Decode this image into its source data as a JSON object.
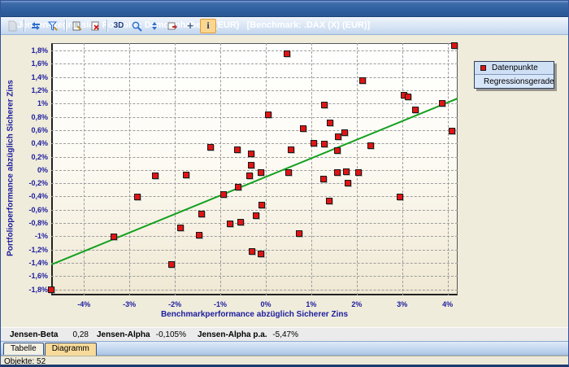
{
  "window": {
    "title": "Jensen-Regression Portfolio: Demo-Inhaber 1 (EUR)   [Benchmark: .DAX (X) (EUR)]"
  },
  "toolbar": {
    "icons": [
      "selection",
      "refresh",
      "edit-filter",
      "edit-report",
      "delete",
      "3d-view",
      "zoom",
      "sort",
      "export",
      "add",
      "info"
    ],
    "label_3d": "3D",
    "label_add": "+",
    "label_info": "i"
  },
  "chart_data": {
    "type": "scatter",
    "xlabel": "Benchmarkperformance abzüglich Sicherer Zins",
    "ylabel": "Portfolioperformance abzüglich Sicherer Zins",
    "xlim": [
      -4.72,
      4.22
    ],
    "ylim": [
      -1.89,
      1.91
    ],
    "grid": "dashed",
    "legend_position": "top-right-outside",
    "x_ticks": {
      "values": [
        -4,
        -3,
        -2,
        -1,
        0,
        1,
        2,
        3,
        4
      ],
      "labels": [
        "-4%",
        "-3%",
        "-2%",
        "-1%",
        "0%",
        "1%",
        "2%",
        "3%",
        "4%"
      ]
    },
    "y_ticks": {
      "values": [
        1.8,
        1.6,
        1.4,
        1.2,
        1.0,
        0.8,
        0.6,
        0.4,
        0.2,
        0,
        -0.2,
        -0.4,
        -0.6,
        -0.8,
        -1.0,
        -1.2,
        -1.4,
        -1.6,
        -1.8
      ],
      "labels": [
        "1,8%",
        "1,6%",
        "1,4%",
        "1,2%",
        "1%",
        "0,8%",
        "0,6%",
        "0,4%",
        "0,2%",
        "0%",
        "-0,2%",
        "-0,4%",
        "-0,6%",
        "-0,8%",
        "-1%",
        "-1,2%",
        "-1,4%",
        "-1,6%",
        "-1,8%"
      ]
    },
    "legend": [
      {
        "label": "Datenpunkte",
        "marker": "square",
        "color": "#e01414"
      },
      {
        "label": "Regressionsgerade",
        "marker": "line",
        "color": "#12a01e"
      }
    ],
    "series": [
      {
        "name": "Datenpunkte",
        "marker_color": "#e01414",
        "points": [
          [
            4.16,
            1.87
          ],
          [
            0.48,
            1.75
          ],
          [
            2.14,
            1.34
          ],
          [
            3.04,
            1.12
          ],
          [
            3.14,
            1.09
          ],
          [
            3.89,
            1.0
          ],
          [
            1.29,
            0.97
          ],
          [
            3.3,
            0.9
          ],
          [
            0.06,
            0.83
          ],
          [
            1.43,
            0.7
          ],
          [
            0.83,
            0.62
          ],
          [
            4.1,
            0.58
          ],
          [
            1.74,
            0.55
          ],
          [
            1.6,
            0.49
          ],
          [
            1.07,
            0.4
          ],
          [
            1.3,
            0.38
          ],
          [
            2.31,
            0.36
          ],
          [
            -1.2,
            0.34
          ],
          [
            0.56,
            0.3
          ],
          [
            -0.62,
            0.3
          ],
          [
            1.59,
            0.29
          ],
          [
            -0.32,
            0.24
          ],
          [
            -0.32,
            0.06
          ],
          [
            -0.09,
            -0.05
          ],
          [
            0.51,
            -0.05
          ],
          [
            -2.43,
            -0.09
          ],
          [
            -1.75,
            -0.08
          ],
          [
            -0.35,
            -0.09
          ],
          [
            1.58,
            -0.04
          ],
          [
            1.78,
            -0.03
          ],
          [
            2.05,
            -0.05
          ],
          [
            1.28,
            -0.14
          ],
          [
            1.81,
            -0.21
          ],
          [
            -0.59,
            -0.27
          ],
          [
            -0.92,
            -0.37
          ],
          [
            -2.81,
            -0.41
          ],
          [
            2.96,
            -0.41
          ],
          [
            1.41,
            -0.48
          ],
          [
            -0.08,
            -0.54
          ],
          [
            -1.4,
            -0.67
          ],
          [
            -0.21,
            -0.7
          ],
          [
            -0.54,
            -0.79
          ],
          [
            -0.78,
            -0.82
          ],
          [
            -1.87,
            -0.88
          ],
          [
            -1.45,
            -0.99
          ],
          [
            0.75,
            -0.96
          ],
          [
            -3.33,
            -1.01
          ],
          [
            -0.3,
            -1.23
          ],
          [
            -0.1,
            -1.27
          ],
          [
            -2.07,
            -1.43
          ],
          [
            -4.72,
            -1.81
          ]
        ]
      },
      {
        "name": "Regressionsgerade",
        "line_color": "#12a01e",
        "regression": {
          "beta": 0.28,
          "alpha_pct": -0.105
        }
      }
    ]
  },
  "stats": [
    {
      "label": "Jensen-Beta",
      "value": "0,28"
    },
    {
      "label": "Jensen-Alpha",
      "value": "-0,105%"
    },
    {
      "label": "Jensen-Alpha p.a.",
      "value": "-5,47%"
    }
  ],
  "tabs": [
    {
      "label": "Tabelle",
      "active": false
    },
    {
      "label": "Diagramm",
      "active": true
    }
  ],
  "status": {
    "objects": "Objekte: 52"
  }
}
